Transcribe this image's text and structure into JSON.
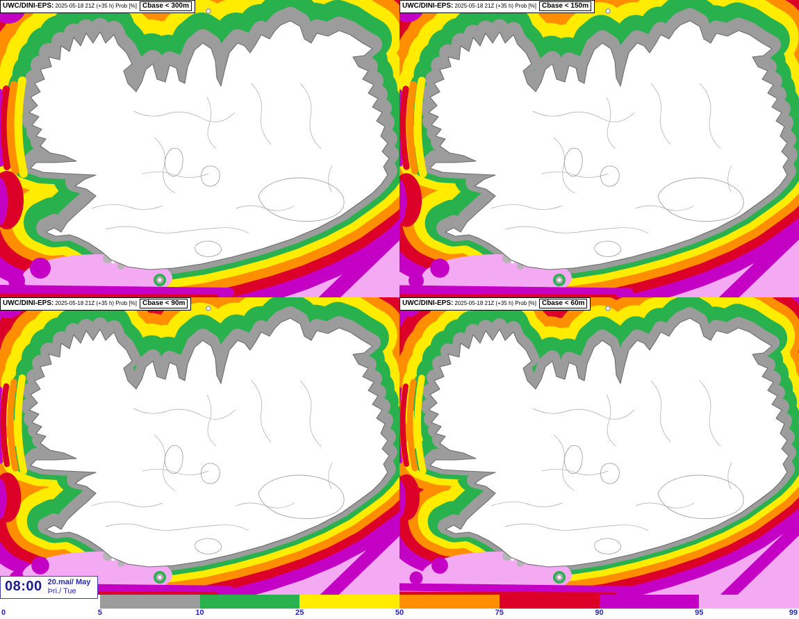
{
  "panels": [
    {
      "model": "UWC/DINI-EPS:",
      "run_info": "2025-05-18 21Z (+35 h) Prob [%]",
      "threshold": "Cbase < 300m"
    },
    {
      "model": "UWC/DINI-EPS:",
      "run_info": "2025-05-18 21Z (+35 h) Prob [%]",
      "threshold": "Cbase < 150m"
    },
    {
      "model": "UWC/DINI-EPS:",
      "run_info": "2025-05-18 21Z (+35 h) Prob [%]",
      "threshold": "Cbase < 90m"
    },
    {
      "model": "UWC/DINI-EPS:",
      "run_info": "2025-05-18 21Z (+35 h) Prob [%]",
      "threshold": "Cbase < 60m"
    }
  ],
  "legend": {
    "tick_labels": [
      "0",
      "5",
      "10",
      "25",
      "50",
      "75",
      "90",
      "95",
      "99"
    ],
    "colors": [
      "#ffffff",
      "#9c9c9c",
      "#28b14c",
      "#ffec00",
      "#ff8e00",
      "#dc0028",
      "#c400c4",
      "#f3aaf3"
    ],
    "label_color": "#2424bb"
  },
  "clock": {
    "time": "08:00",
    "date": "20.maí/ May",
    "weekday": "Þri./ Tue"
  }
}
